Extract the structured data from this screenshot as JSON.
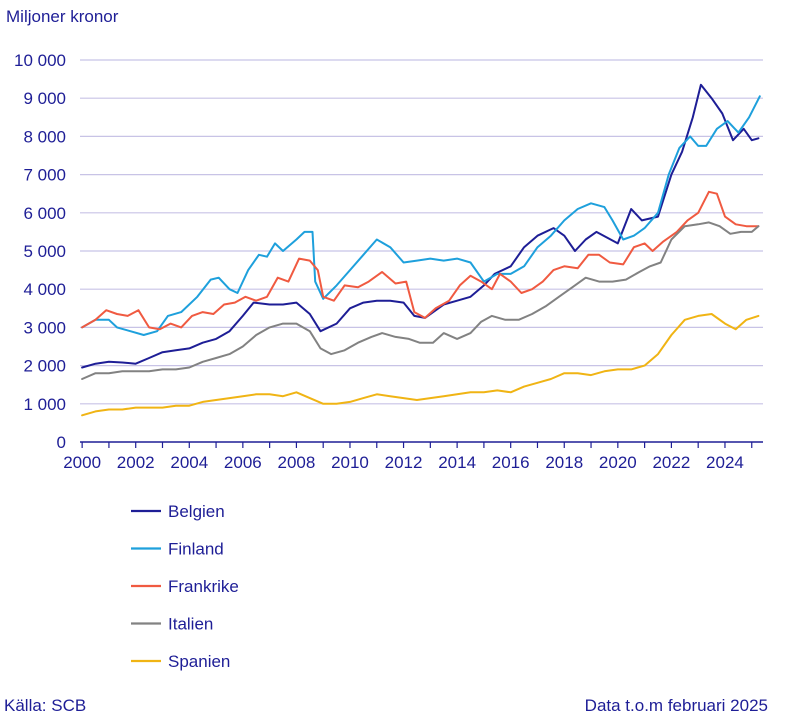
{
  "chart_data": {
    "type": "line",
    "ylabel": "Miljoner kronor",
    "ylim": [
      0,
      10000
    ],
    "yticks": [
      "0",
      "1 000",
      "2 000",
      "3 000",
      "4 000",
      "5 000",
      "6 000",
      "7 000",
      "8 000",
      "9 000",
      "10 000"
    ],
    "yticks_values": [
      0,
      1000,
      2000,
      3000,
      4000,
      5000,
      6000,
      7000,
      8000,
      9000,
      10000
    ],
    "xlim": [
      1999.92,
      2025.42
    ],
    "xticks": [
      "2000",
      "2002",
      "2004",
      "2006",
      "2008",
      "2010",
      "2012",
      "2014",
      "2016",
      "2018",
      "2020",
      "2022",
      "2024"
    ],
    "xticks_values": [
      2000,
      2002,
      2004,
      2006,
      2008,
      2010,
      2012,
      2014,
      2016,
      2018,
      2020,
      2022,
      2024
    ],
    "grid": "horizontal",
    "legend": "bottom-left",
    "series": [
      {
        "name": "Belgien",
        "color": "#1e1e96",
        "points": [
          [
            2000.0,
            1950
          ],
          [
            2000.5,
            2050
          ],
          [
            2001.0,
            2100
          ],
          [
            2001.5,
            2080
          ],
          [
            2002.0,
            2050
          ],
          [
            2002.5,
            2200
          ],
          [
            2003.0,
            2350
          ],
          [
            2003.5,
            2400
          ],
          [
            2004.0,
            2450
          ],
          [
            2004.5,
            2600
          ],
          [
            2005.0,
            2700
          ],
          [
            2005.5,
            2900
          ],
          [
            2006.0,
            3300
          ],
          [
            2006.4,
            3650
          ],
          [
            2007.0,
            3600
          ],
          [
            2007.5,
            3600
          ],
          [
            2008.0,
            3650
          ],
          [
            2008.5,
            3350
          ],
          [
            2008.9,
            2900
          ],
          [
            2009.5,
            3100
          ],
          [
            2010.0,
            3500
          ],
          [
            2010.5,
            3650
          ],
          [
            2011.0,
            3700
          ],
          [
            2011.5,
            3700
          ],
          [
            2012.0,
            3650
          ],
          [
            2012.4,
            3300
          ],
          [
            2012.8,
            3250
          ],
          [
            2013.5,
            3600
          ],
          [
            2014.0,
            3700
          ],
          [
            2014.5,
            3800
          ],
          [
            2015.0,
            4100
          ],
          [
            2015.4,
            4400
          ],
          [
            2016.0,
            4600
          ],
          [
            2016.5,
            5100
          ],
          [
            2017.0,
            5400
          ],
          [
            2017.6,
            5600
          ],
          [
            2018.0,
            5400
          ],
          [
            2018.4,
            5000
          ],
          [
            2018.8,
            5300
          ],
          [
            2019.2,
            5500
          ],
          [
            2019.6,
            5350
          ],
          [
            2020.0,
            5200
          ],
          [
            2020.5,
            6100
          ],
          [
            2020.9,
            5800
          ],
          [
            2021.5,
            5900
          ],
          [
            2022.0,
            7000
          ],
          [
            2022.4,
            7600
          ],
          [
            2022.8,
            8500
          ],
          [
            2023.1,
            9350
          ],
          [
            2023.5,
            9000
          ],
          [
            2023.9,
            8600
          ],
          [
            2024.3,
            7900
          ],
          [
            2024.7,
            8200
          ],
          [
            2025.0,
            7900
          ],
          [
            2025.25,
            7950
          ]
        ]
      },
      {
        "name": "Finland",
        "color": "#1ea0dc",
        "points": [
          [
            2000.0,
            3000
          ],
          [
            2000.5,
            3200
          ],
          [
            2001.0,
            3200
          ],
          [
            2001.3,
            3000
          ],
          [
            2001.8,
            2900
          ],
          [
            2002.3,
            2800
          ],
          [
            2002.8,
            2900
          ],
          [
            2003.2,
            3300
          ],
          [
            2003.7,
            3400
          ],
          [
            2004.3,
            3800
          ],
          [
            2004.8,
            4250
          ],
          [
            2005.1,
            4300
          ],
          [
            2005.5,
            4000
          ],
          [
            2005.8,
            3900
          ],
          [
            2006.2,
            4500
          ],
          [
            2006.6,
            4900
          ],
          [
            2006.9,
            4850
          ],
          [
            2007.2,
            5200
          ],
          [
            2007.5,
            5000
          ],
          [
            2008.0,
            5300
          ],
          [
            2008.3,
            5500
          ],
          [
            2008.6,
            5500
          ],
          [
            2008.7,
            4200
          ],
          [
            2009.0,
            3750
          ],
          [
            2009.5,
            4100
          ],
          [
            2010.0,
            4500
          ],
          [
            2010.5,
            4900
          ],
          [
            2011.0,
            5300
          ],
          [
            2011.5,
            5100
          ],
          [
            2012.0,
            4700
          ],
          [
            2012.5,
            4750
          ],
          [
            2013.0,
            4800
          ],
          [
            2013.5,
            4750
          ],
          [
            2014.0,
            4800
          ],
          [
            2014.5,
            4700
          ],
          [
            2015.0,
            4200
          ],
          [
            2015.5,
            4400
          ],
          [
            2016.0,
            4400
          ],
          [
            2016.5,
            4600
          ],
          [
            2017.0,
            5100
          ],
          [
            2017.5,
            5400
          ],
          [
            2018.0,
            5800
          ],
          [
            2018.5,
            6100
          ],
          [
            2019.0,
            6250
          ],
          [
            2019.5,
            6150
          ],
          [
            2019.8,
            5800
          ],
          [
            2020.2,
            5300
          ],
          [
            2020.6,
            5400
          ],
          [
            2021.0,
            5600
          ],
          [
            2021.5,
            6000
          ],
          [
            2021.9,
            7000
          ],
          [
            2022.3,
            7700
          ],
          [
            2022.7,
            8000
          ],
          [
            2023.0,
            7750
          ],
          [
            2023.3,
            7750
          ],
          [
            2023.7,
            8200
          ],
          [
            2024.1,
            8400
          ],
          [
            2024.5,
            8100
          ],
          [
            2024.9,
            8500
          ],
          [
            2025.3,
            9050
          ]
        ]
      },
      {
        "name": "Frankrike",
        "color": "#f05a41",
        "points": [
          [
            2000.0,
            3000
          ],
          [
            2000.5,
            3200
          ],
          [
            2000.9,
            3450
          ],
          [
            2001.3,
            3350
          ],
          [
            2001.7,
            3300
          ],
          [
            2002.1,
            3450
          ],
          [
            2002.5,
            3000
          ],
          [
            2002.9,
            2950
          ],
          [
            2003.3,
            3100
          ],
          [
            2003.7,
            3000
          ],
          [
            2004.1,
            3300
          ],
          [
            2004.5,
            3400
          ],
          [
            2004.9,
            3350
          ],
          [
            2005.3,
            3600
          ],
          [
            2005.7,
            3650
          ],
          [
            2006.1,
            3800
          ],
          [
            2006.5,
            3700
          ],
          [
            2006.9,
            3800
          ],
          [
            2007.3,
            4300
          ],
          [
            2007.7,
            4200
          ],
          [
            2008.1,
            4800
          ],
          [
            2008.5,
            4750
          ],
          [
            2008.8,
            4500
          ],
          [
            2009.0,
            3800
          ],
          [
            2009.4,
            3700
          ],
          [
            2009.8,
            4100
          ],
          [
            2010.3,
            4050
          ],
          [
            2010.7,
            4200
          ],
          [
            2011.2,
            4450
          ],
          [
            2011.7,
            4150
          ],
          [
            2012.1,
            4200
          ],
          [
            2012.4,
            3400
          ],
          [
            2012.8,
            3250
          ],
          [
            2013.2,
            3500
          ],
          [
            2013.7,
            3700
          ],
          [
            2014.1,
            4100
          ],
          [
            2014.5,
            4350
          ],
          [
            2014.9,
            4200
          ],
          [
            2015.3,
            4000
          ],
          [
            2015.6,
            4400
          ],
          [
            2016.0,
            4200
          ],
          [
            2016.4,
            3900
          ],
          [
            2016.8,
            4000
          ],
          [
            2017.2,
            4200
          ],
          [
            2017.6,
            4500
          ],
          [
            2018.0,
            4600
          ],
          [
            2018.5,
            4550
          ],
          [
            2018.9,
            4900
          ],
          [
            2019.3,
            4900
          ],
          [
            2019.7,
            4700
          ],
          [
            2020.2,
            4650
          ],
          [
            2020.6,
            5100
          ],
          [
            2021.0,
            5200
          ],
          [
            2021.3,
            5000
          ],
          [
            2021.7,
            5250
          ],
          [
            2022.2,
            5500
          ],
          [
            2022.6,
            5800
          ],
          [
            2023.0,
            6000
          ],
          [
            2023.4,
            6550
          ],
          [
            2023.7,
            6500
          ],
          [
            2024.0,
            5900
          ],
          [
            2024.4,
            5700
          ],
          [
            2024.8,
            5650
          ],
          [
            2025.25,
            5650
          ]
        ]
      },
      {
        "name": "Italien",
        "color": "#828282",
        "points": [
          [
            2000.0,
            1650
          ],
          [
            2000.5,
            1800
          ],
          [
            2001.0,
            1800
          ],
          [
            2001.5,
            1850
          ],
          [
            2002.0,
            1850
          ],
          [
            2002.5,
            1850
          ],
          [
            2003.0,
            1900
          ],
          [
            2003.5,
            1900
          ],
          [
            2004.0,
            1950
          ],
          [
            2004.5,
            2100
          ],
          [
            2005.0,
            2200
          ],
          [
            2005.5,
            2300
          ],
          [
            2006.0,
            2500
          ],
          [
            2006.5,
            2800
          ],
          [
            2007.0,
            3000
          ],
          [
            2007.5,
            3100
          ],
          [
            2008.0,
            3100
          ],
          [
            2008.5,
            2900
          ],
          [
            2008.9,
            2450
          ],
          [
            2009.3,
            2300
          ],
          [
            2009.8,
            2400
          ],
          [
            2010.3,
            2600
          ],
          [
            2010.8,
            2750
          ],
          [
            2011.2,
            2850
          ],
          [
            2011.7,
            2750
          ],
          [
            2012.2,
            2700
          ],
          [
            2012.6,
            2600
          ],
          [
            2013.1,
            2600
          ],
          [
            2013.5,
            2850
          ],
          [
            2014.0,
            2700
          ],
          [
            2014.5,
            2850
          ],
          [
            2014.9,
            3150
          ],
          [
            2015.3,
            3300
          ],
          [
            2015.8,
            3200
          ],
          [
            2016.3,
            3200
          ],
          [
            2016.8,
            3350
          ],
          [
            2017.3,
            3550
          ],
          [
            2017.8,
            3800
          ],
          [
            2018.3,
            4050
          ],
          [
            2018.8,
            4300
          ],
          [
            2019.3,
            4200
          ],
          [
            2019.8,
            4200
          ],
          [
            2020.3,
            4250
          ],
          [
            2020.8,
            4450
          ],
          [
            2021.2,
            4600
          ],
          [
            2021.6,
            4700
          ],
          [
            2022.0,
            5300
          ],
          [
            2022.5,
            5650
          ],
          [
            2023.0,
            5700
          ],
          [
            2023.4,
            5750
          ],
          [
            2023.8,
            5650
          ],
          [
            2024.2,
            5450
          ],
          [
            2024.6,
            5500
          ],
          [
            2025.0,
            5500
          ],
          [
            2025.25,
            5650
          ]
        ]
      },
      {
        "name": "Spanien",
        "color": "#f0b414",
        "points": [
          [
            2000.0,
            700
          ],
          [
            2000.5,
            800
          ],
          [
            2001.0,
            850
          ],
          [
            2001.5,
            850
          ],
          [
            2002.0,
            900
          ],
          [
            2002.5,
            900
          ],
          [
            2003.0,
            900
          ],
          [
            2003.5,
            950
          ],
          [
            2004.0,
            950
          ],
          [
            2004.5,
            1050
          ],
          [
            2005.0,
            1100
          ],
          [
            2005.5,
            1150
          ],
          [
            2006.0,
            1200
          ],
          [
            2006.5,
            1250
          ],
          [
            2007.0,
            1250
          ],
          [
            2007.5,
            1200
          ],
          [
            2008.0,
            1300
          ],
          [
            2008.5,
            1150
          ],
          [
            2009.0,
            1000
          ],
          [
            2009.5,
            1000
          ],
          [
            2010.0,
            1050
          ],
          [
            2010.5,
            1150
          ],
          [
            2011.0,
            1250
          ],
          [
            2011.5,
            1200
          ],
          [
            2012.0,
            1150
          ],
          [
            2012.5,
            1100
          ],
          [
            2013.0,
            1150
          ],
          [
            2013.5,
            1200
          ],
          [
            2014.0,
            1250
          ],
          [
            2014.5,
            1300
          ],
          [
            2015.0,
            1300
          ],
          [
            2015.5,
            1350
          ],
          [
            2016.0,
            1300
          ],
          [
            2016.5,
            1450
          ],
          [
            2017.0,
            1550
          ],
          [
            2017.5,
            1650
          ],
          [
            2018.0,
            1800
          ],
          [
            2018.5,
            1800
          ],
          [
            2019.0,
            1750
          ],
          [
            2019.5,
            1850
          ],
          [
            2020.0,
            1900
          ],
          [
            2020.5,
            1900
          ],
          [
            2021.0,
            2000
          ],
          [
            2021.5,
            2300
          ],
          [
            2022.0,
            2800
          ],
          [
            2022.5,
            3200
          ],
          [
            2023.0,
            3300
          ],
          [
            2023.5,
            3350
          ],
          [
            2024.0,
            3100
          ],
          [
            2024.4,
            2950
          ],
          [
            2024.8,
            3200
          ],
          [
            2025.25,
            3300
          ]
        ]
      }
    ]
  },
  "footer": {
    "source": "Källa: SCB",
    "note": "Data t.o.m februari 2025"
  }
}
